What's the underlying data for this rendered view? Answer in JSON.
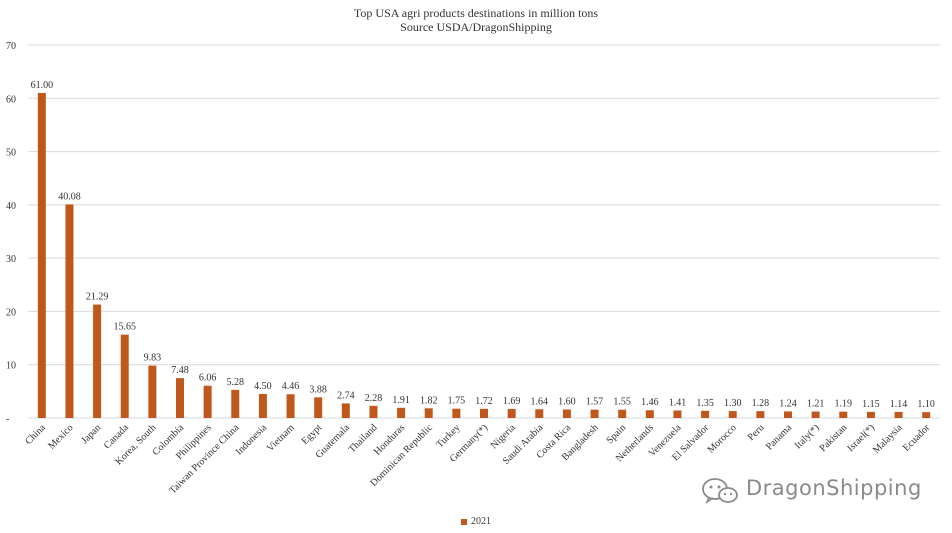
{
  "chart_data": {
    "type": "bar",
    "title": "Top USA agri products destinations in million tons",
    "subtitle": "Source USDA/DragonShipping",
    "categories": [
      "China",
      "Mexico",
      "Japan",
      "Canada",
      "Korea, South",
      "Colombia",
      "Philippines",
      "Taiwan Province China",
      "Indonesia",
      "Vietnam",
      "Egypt",
      "Guatemala",
      "Thailand",
      "Honduras",
      "Dominican Republic",
      "Turkey",
      "Germany(*)",
      "Nigeria",
      "Saudi Arabia",
      "Costa Rica",
      "Bangladesh",
      "Spain",
      "Netherlands",
      "Venezuela",
      "El Salvador",
      "Morocco",
      "Peru",
      "Panama",
      "Italy(*)",
      "Pakistan",
      "Israel(*)",
      "Malaysia",
      "Ecuador"
    ],
    "series": [
      {
        "name": "2021",
        "values": [
          61.0,
          40.08,
          21.29,
          15.65,
          9.83,
          7.48,
          6.06,
          5.28,
          4.5,
          4.46,
          3.88,
          2.74,
          2.28,
          1.91,
          1.82,
          1.75,
          1.72,
          1.69,
          1.64,
          1.6,
          1.57,
          1.55,
          1.46,
          1.41,
          1.35,
          1.3,
          1.28,
          1.24,
          1.21,
          1.19,
          1.15,
          1.14,
          1.1
        ],
        "value_labels": [
          "61.00",
          "40.08",
          "21.29",
          "15.65",
          "9.83",
          "7.48",
          "6.06",
          "5.28",
          "4.50",
          "4.46",
          "3.88",
          "2.74",
          "2.28",
          "1.91",
          "1.82",
          "1.75",
          "1.72",
          "1.69",
          "1.64",
          "1.60",
          "1.57",
          "1.55",
          "1.46",
          "1.41",
          "1.35",
          "1.30",
          "1.28",
          "1.24",
          "1.21",
          "1.19",
          "1.15",
          "1.14",
          "1.10"
        ],
        "color": "#c0581c"
      }
    ],
    "ylim": [
      0,
      70
    ],
    "yticks": [
      0,
      10,
      20,
      30,
      40,
      50,
      60,
      70
    ],
    "ytick_labels": [
      "-",
      "10",
      "20",
      "30",
      "40",
      "50",
      "60",
      "70"
    ],
    "grid": true,
    "legend_position": "bottom-center"
  },
  "watermark": {
    "text": "DragonShipping",
    "icon": "wechat-icon"
  },
  "colors": {
    "bar": "#c0581c",
    "grid": "#d9d9d9",
    "text": "#333333"
  }
}
